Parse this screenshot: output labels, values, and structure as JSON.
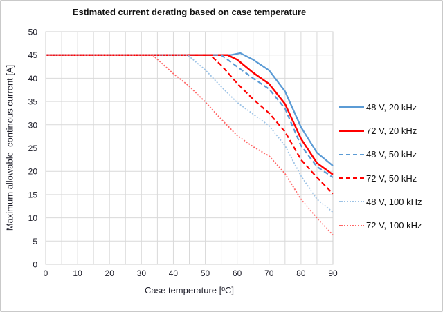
{
  "chart": {
    "title": "Estimated current derating based on case temperature",
    "x_axis_label": "Case temperature [ºC]",
    "y_axis_label": "Maximum allowable  continous current [A]"
  },
  "colors": {
    "grid": "#D9D9D9",
    "plot_border": "#CFCFCF",
    "text": "#1F1F28",
    "outer_border": "#C9C9C9",
    "blue": "#5B9BD5",
    "red": "#FF0000",
    "light_blue": "#9DC3E6",
    "light_red": "#FF6666"
  },
  "chart_data": {
    "type": "line",
    "title": "Estimated current derating based on case temperature",
    "xlabel": "Case temperature [ºC]",
    "ylabel": "Maximum allowable  continous current [A]",
    "xlim": [
      0,
      90
    ],
    "ylim": [
      0,
      50
    ],
    "x_ticks": [
      0,
      10,
      20,
      30,
      40,
      50,
      60,
      70,
      80,
      90
    ],
    "y_ticks": [
      0,
      5,
      10,
      15,
      20,
      25,
      30,
      35,
      40,
      45,
      50
    ],
    "x_grid_step": 5,
    "y_grid_step": 5,
    "grid": true,
    "grid_color": "#D9D9D9",
    "legend_position": "right",
    "series": [
      {
        "id": "48v-20khz",
        "name": "48 V, 20 kHz",
        "color": "#5B9BD5",
        "style": "solid",
        "stroke_width": 2.3,
        "points": [
          [
            0,
            45
          ],
          [
            58,
            45
          ],
          [
            61,
            45.4
          ],
          [
            65,
            44
          ],
          [
            70,
            41.7
          ],
          [
            75,
            37.2
          ],
          [
            80,
            29.5
          ],
          [
            85,
            24
          ],
          [
            90,
            21.2
          ]
        ]
      },
      {
        "id": "72v-20khz",
        "name": "72 V, 20 kHz",
        "color": "#FF0000",
        "style": "solid",
        "stroke_width": 2.5,
        "points": [
          [
            0,
            45
          ],
          [
            57,
            45
          ],
          [
            60,
            44
          ],
          [
            65,
            41.2
          ],
          [
            70,
            38.8
          ],
          [
            75,
            34.5
          ],
          [
            80,
            27
          ],
          [
            85,
            21.8
          ],
          [
            90,
            19.3
          ]
        ]
      },
      {
        "id": "48v-50khz",
        "name": "48 V, 50 kHz",
        "color": "#5B9BD5",
        "style": "dashed",
        "stroke_width": 2.2,
        "points": [
          [
            0,
            45
          ],
          [
            55,
            45
          ],
          [
            60,
            42.5
          ],
          [
            65,
            40
          ],
          [
            70,
            37.7
          ],
          [
            75,
            33.5
          ],
          [
            80,
            25.5
          ],
          [
            85,
            21
          ],
          [
            90,
            18.7
          ]
        ]
      },
      {
        "id": "72v-50khz",
        "name": "72 V, 50 kHz",
        "color": "#FF0000",
        "style": "dashed",
        "stroke_width": 2.2,
        "points": [
          [
            0,
            45
          ],
          [
            51.5,
            45
          ],
          [
            55,
            42.8
          ],
          [
            60,
            38.9
          ],
          [
            65,
            35.5
          ],
          [
            70,
            32.5
          ],
          [
            75,
            28.5
          ],
          [
            80,
            22.5
          ],
          [
            85,
            18.7
          ],
          [
            90,
            15.2
          ]
        ]
      },
      {
        "id": "48v-100khz",
        "name": "48 V, 100 kHz",
        "color": "#9DC3E6",
        "style": "dotted",
        "stroke_width": 1.8,
        "points": [
          [
            0,
            45
          ],
          [
            44.5,
            45
          ],
          [
            50,
            41.8
          ],
          [
            55,
            38.2
          ],
          [
            60,
            34.8
          ],
          [
            65,
            32.3
          ],
          [
            70,
            29.8
          ],
          [
            75,
            25.5
          ],
          [
            80,
            19
          ],
          [
            85,
            14
          ],
          [
            90,
            11.2
          ]
        ]
      },
      {
        "id": "72v-100khz",
        "name": "72 V, 100 kHz",
        "color": "#FF6666",
        "style": "dotted",
        "stroke_width": 1.8,
        "points": [
          [
            0,
            45
          ],
          [
            33.5,
            45
          ],
          [
            40,
            41
          ],
          [
            45,
            38.3
          ],
          [
            50,
            34.9
          ],
          [
            55,
            31.2
          ],
          [
            60,
            27.7
          ],
          [
            65,
            25.3
          ],
          [
            70,
            23.3
          ],
          [
            75,
            19.5
          ],
          [
            80,
            14
          ],
          [
            85,
            10
          ],
          [
            90,
            6.3
          ]
        ]
      }
    ]
  }
}
